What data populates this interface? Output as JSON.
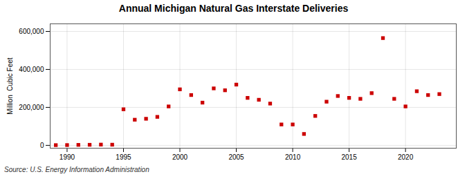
{
  "chart_data": {
    "type": "scatter",
    "title": "Annual Michigan Natural Gas Interstate Deliveries",
    "ylabel": "Million  Cubic Feet",
    "annotation": "Source: U.S. Energy Information Administration",
    "x": [
      1989,
      1990,
      1991,
      1992,
      1993,
      1994,
      1995,
      1996,
      1997,
      1998,
      1999,
      2000,
      2001,
      2002,
      2003,
      2004,
      2005,
      2006,
      2007,
      2008,
      2009,
      2010,
      2011,
      2012,
      2013,
      2014,
      2015,
      2016,
      2017,
      2018,
      2019,
      2020,
      2021,
      2022,
      2023
    ],
    "values": [
      1200,
      1500,
      2500,
      3000,
      4000,
      3500,
      190000,
      135000,
      140000,
      150000,
      205000,
      295000,
      265000,
      225000,
      300000,
      290000,
      320000,
      250000,
      240000,
      220000,
      110000,
      110000,
      60000,
      155000,
      230000,
      260000,
      250000,
      245000,
      275000,
      565000,
      245000,
      205000,
      285000,
      265000,
      270000
    ],
    "color": "#cc0000",
    "marker": "square",
    "xlim": [
      1988.5,
      2024.5
    ],
    "ylim": [
      -15000,
      640000
    ],
    "xticks": [
      1990,
      1995,
      2000,
      2005,
      2010,
      2015,
      2020
    ],
    "yticks": [
      0,
      {
        "value": 200000,
        "label": "200,000"
      },
      {
        "value": 400000,
        "label": "400,000"
      },
      {
        "value": 600000,
        "label": "600,000"
      }
    ],
    "grid": true
  }
}
